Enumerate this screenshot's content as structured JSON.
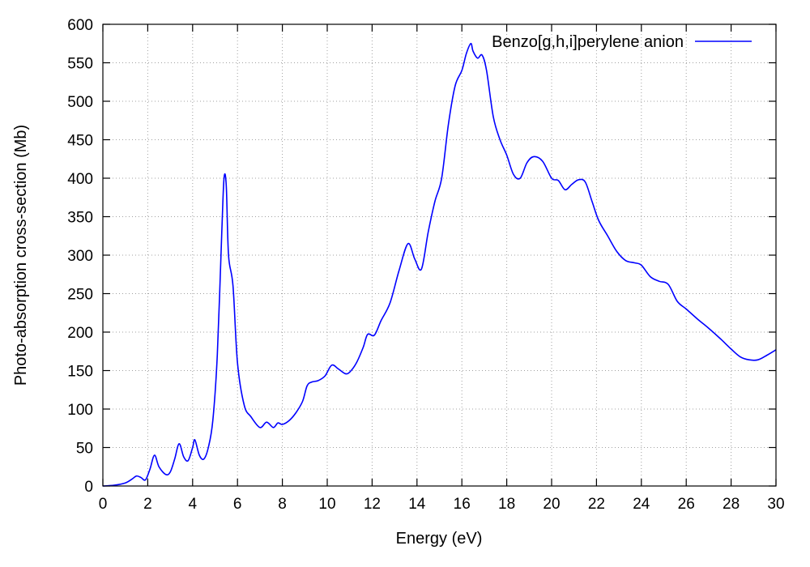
{
  "chart_data": {
    "type": "line",
    "xlabel": "Energy (eV)",
    "ylabel": "Photo-absorption cross-section (Mb)",
    "xlim": [
      0,
      30
    ],
    "ylim": [
      0,
      600
    ],
    "xticks": [
      0,
      2,
      4,
      6,
      8,
      10,
      12,
      14,
      16,
      18,
      20,
      22,
      24,
      26,
      28,
      30
    ],
    "yticks": [
      0,
      50,
      100,
      150,
      200,
      250,
      300,
      350,
      400,
      450,
      500,
      550,
      600
    ],
    "grid": true,
    "legend_position": "top-right",
    "series": [
      {
        "name": "Benzo[g,h,i]perylene anion",
        "color": "#0000ff",
        "x": [
          0,
          0.5,
          1.0,
          1.3,
          1.5,
          1.7,
          1.9,
          2.1,
          2.3,
          2.5,
          2.8,
          3.0,
          3.2,
          3.4,
          3.6,
          3.8,
          4.0,
          4.1,
          4.3,
          4.5,
          4.7,
          4.9,
          5.1,
          5.3,
          5.4,
          5.5,
          5.6,
          5.8,
          6.0,
          6.3,
          6.6,
          7.0,
          7.3,
          7.6,
          7.8,
          8.0,
          8.3,
          8.6,
          8.9,
          9.1,
          9.3,
          9.6,
          9.9,
          10.2,
          10.5,
          10.8,
          11.0,
          11.3,
          11.6,
          11.8,
          12.1,
          12.4,
          12.8,
          13.2,
          13.6,
          13.9,
          14.2,
          14.5,
          14.8,
          15.1,
          15.4,
          15.7,
          16.0,
          16.2,
          16.4,
          16.5,
          16.7,
          16.9,
          17.1,
          17.4,
          17.7,
          18.0,
          18.3,
          18.6,
          18.9,
          19.2,
          19.6,
          20.0,
          20.3,
          20.6,
          20.9,
          21.2,
          21.5,
          21.8,
          22.1,
          22.5,
          22.9,
          23.3,
          23.7,
          24.0,
          24.4,
          24.8,
          25.2,
          25.6,
          26.0,
          26.5,
          27.0,
          27.5,
          28.0,
          28.4,
          28.8,
          29.2,
          29.6,
          30.0
        ],
        "y": [
          0,
          1,
          4,
          9,
          13,
          11,
          8,
          22,
          40,
          25,
          15,
          18,
          35,
          55,
          38,
          33,
          50,
          60,
          40,
          35,
          50,
          85,
          170,
          330,
          400,
          390,
          300,
          260,
          160,
          105,
          90,
          76,
          83,
          76,
          82,
          80,
          85,
          95,
          110,
          130,
          135,
          137,
          143,
          157,
          152,
          146,
          148,
          160,
          180,
          197,
          196,
          215,
          238,
          280,
          315,
          295,
          282,
          330,
          370,
          400,
          470,
          520,
          540,
          562,
          575,
          565,
          556,
          560,
          540,
          480,
          450,
          430,
          405,
          400,
          420,
          428,
          422,
          400,
          397,
          385,
          392,
          398,
          395,
          370,
          345,
          325,
          305,
          293,
          290,
          287,
          272,
          266,
          262,
          240,
          230,
          217,
          205,
          192,
          178,
          168,
          164,
          164,
          170,
          177
        ]
      }
    ]
  }
}
